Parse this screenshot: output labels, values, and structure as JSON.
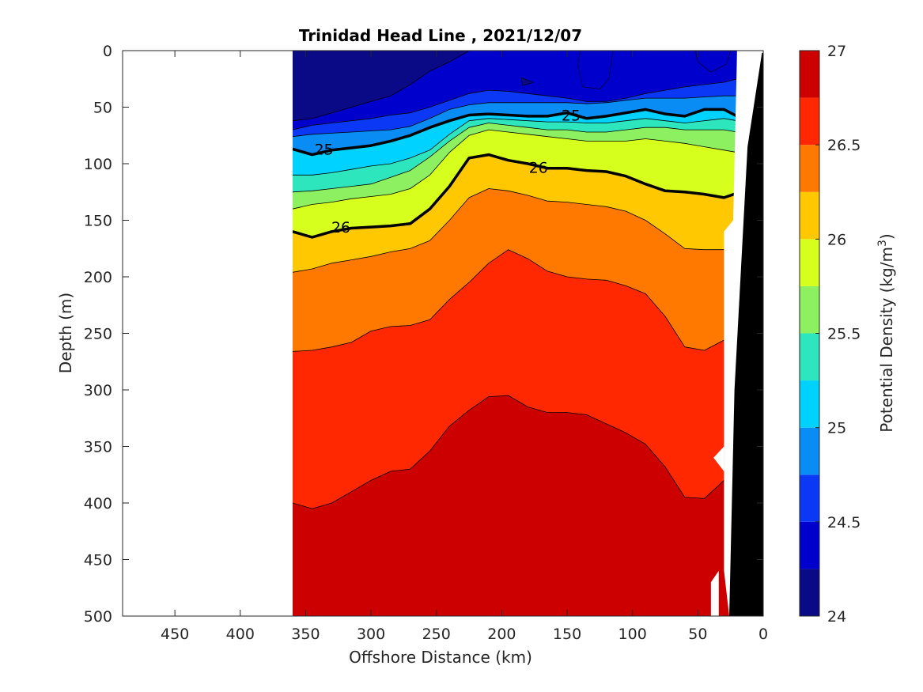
{
  "chart_data": {
    "type": "contour",
    "title": "Trinidad Head Line , 2021/12/07",
    "xlabel": "Offshore Distance (km)",
    "ylabel": "Depth (m)",
    "xlim": [
      490,
      0
    ],
    "ylim": [
      0,
      500
    ],
    "x_reversed": true,
    "y_reversed": true,
    "x_ticks": [
      450,
      400,
      350,
      300,
      250,
      200,
      150,
      100,
      50,
      0
    ],
    "y_ticks": [
      0,
      50,
      100,
      150,
      200,
      250,
      300,
      350,
      400,
      450,
      500
    ],
    "colorbar": {
      "label": "Potential Density (kg/m",
      "label_superscript": "3",
      "label_suffix": ")",
      "range": [
        24,
        27
      ],
      "step": 0.25,
      "tick_values": [
        24,
        24.5,
        25,
        25.5,
        26,
        26.5,
        27
      ],
      "tick_labels": [
        "24",
        "24.5",
        "25",
        "25.5",
        "26",
        "26.5",
        "27"
      ],
      "colors": [
        "#0a0a87",
        "#0000cd",
        "#0a38f5",
        "#0a8cf5",
        "#00d2ff",
        "#2de6be",
        "#8cf060",
        "#d7ff1e",
        "#ffc800",
        "#ff7800",
        "#ff2800",
        "#cd0000"
      ]
    },
    "x_grid": [
      360,
      345,
      330,
      315,
      300,
      285,
      270,
      255,
      240,
      225,
      210,
      195,
      180,
      165,
      150,
      135,
      120,
      105,
      90,
      75,
      60,
      45,
      30,
      20
    ],
    "isopycnal_depths_m": [
      {
        "level": 24.25,
        "depth": [
          62,
          60,
          55,
          50,
          45,
          40,
          30,
          18,
          10,
          0,
          0,
          0,
          0,
          0,
          0,
          0,
          0,
          0,
          0,
          0,
          0,
          0,
          0,
          0
        ]
      },
      {
        "level": 24.5,
        "depth": [
          70,
          66,
          64,
          62,
          60,
          57,
          55,
          50,
          44,
          38,
          35,
          36,
          38,
          40,
          42,
          45,
          45,
          42,
          38,
          35,
          32,
          30,
          28,
          25
        ]
      },
      {
        "level": 24.75,
        "depth": [
          76,
          74,
          73,
          72,
          71,
          70,
          67,
          60,
          52,
          48,
          46,
          46,
          46,
          46,
          46,
          47,
          46,
          44,
          42,
          42,
          42,
          41,
          40,
          40
        ]
      },
      {
        "level": 25.0,
        "depth": [
          87,
          92,
          88,
          86,
          84,
          80,
          75,
          68,
          62,
          57,
          56,
          57,
          58,
          58,
          55,
          60,
          58,
          55,
          52,
          56,
          58,
          52,
          52,
          58
        ]
      },
      {
        "level": 25.25,
        "depth": [
          110,
          110,
          108,
          105,
          102,
          100,
          95,
          88,
          74,
          62,
          60,
          61,
          62,
          63,
          63,
          64,
          64,
          62,
          60,
          62,
          64,
          62,
          60,
          62
        ]
      },
      {
        "level": 25.5,
        "depth": [
          125,
          124,
          122,
          120,
          118,
          112,
          106,
          94,
          80,
          68,
          64,
          66,
          68,
          70,
          70,
          72,
          72,
          70,
          68,
          68,
          70,
          70,
          70,
          72
        ]
      },
      {
        "level": 25.75,
        "depth": [
          140,
          136,
          134,
          131,
          129,
          127,
          122,
          110,
          90,
          75,
          70,
          72,
          74,
          76,
          78,
          80,
          80,
          80,
          78,
          80,
          82,
          85,
          88,
          90
        ]
      },
      {
        "level": 26.0,
        "depth": [
          160,
          165,
          160,
          157,
          156,
          155,
          153,
          140,
          120,
          95,
          92,
          97,
          100,
          104,
          104,
          106,
          107,
          111,
          118,
          124,
          125,
          127,
          130,
          126
        ]
      },
      {
        "level": 26.25,
        "depth": [
          196,
          193,
          188,
          185,
          182,
          178,
          175,
          168,
          150,
          130,
          122,
          124,
          128,
          133,
          134,
          136,
          138,
          142,
          150,
          162,
          175,
          176,
          176,
          176
        ]
      },
      {
        "level": 26.5,
        "depth": [
          266,
          265,
          262,
          258,
          248,
          244,
          243,
          238,
          220,
          205,
          188,
          176,
          184,
          195,
          200,
          202,
          203,
          208,
          215,
          235,
          262,
          265,
          256,
          256
        ]
      },
      {
        "level": 26.75,
        "depth": [
          400,
          405,
          400,
          390,
          380,
          372,
          370,
          354,
          332,
          318,
          306,
          305,
          315,
          320,
          320,
          322,
          330,
          338,
          348,
          368,
          395,
          396,
          380,
          412
        ]
      }
    ],
    "contour_labels": [
      {
        "text": "25",
        "x": 147,
        "y": 57
      },
      {
        "text": "25",
        "x": 336,
        "y": 87
      },
      {
        "text": "26",
        "x": 172,
        "y": 103
      },
      {
        "text": "26",
        "x": 323,
        "y": 156
      }
    ],
    "land_mask": "black wedge near 0 km (coast, seafloor)"
  }
}
